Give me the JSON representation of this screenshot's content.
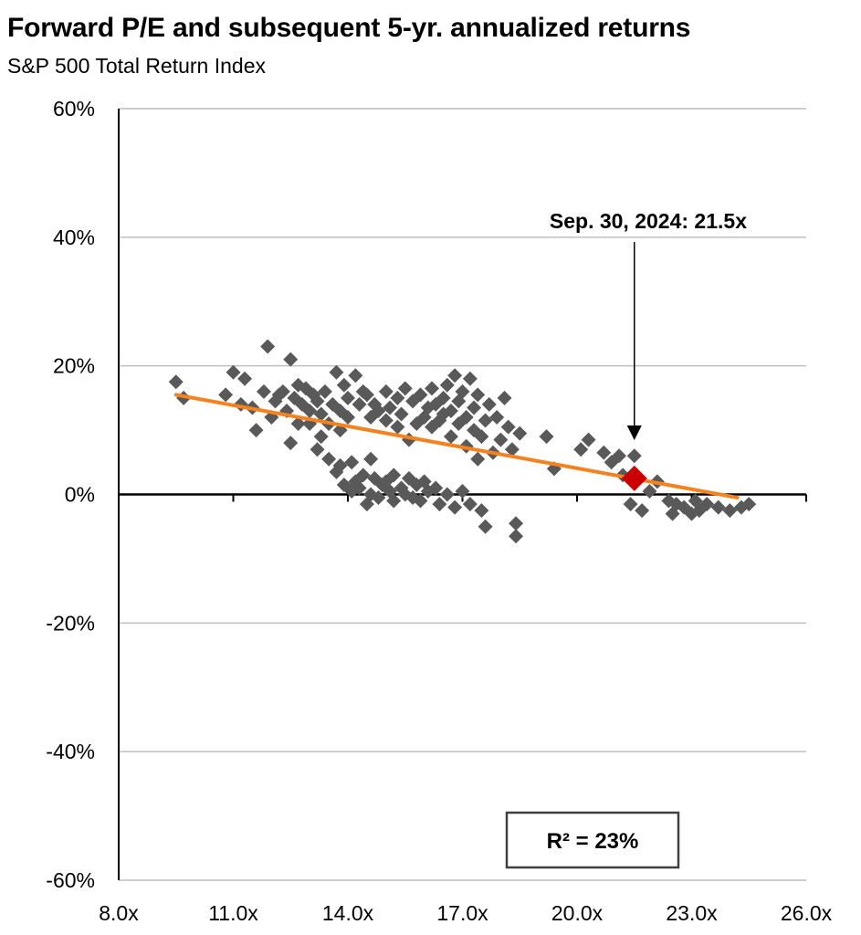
{
  "chart_data": {
    "type": "scatter",
    "title": "Forward P/E and subsequent 5-yr. annualized returns",
    "subtitle": "S&P 500 Total Return Index",
    "xlabel": "",
    "ylabel": "",
    "xlim": [
      8,
      26
    ],
    "ylim": [
      -60,
      60
    ],
    "x_ticks": [
      8,
      11,
      14,
      17,
      20,
      23,
      26
    ],
    "x_tick_labels": [
      "8.0x",
      "11.0x",
      "14.0x",
      "17.0x",
      "20.0x",
      "23.0x",
      "26.0x"
    ],
    "y_ticks": [
      60,
      40,
      20,
      0,
      -20,
      -40,
      -60
    ],
    "y_tick_labels": [
      "60%",
      "40%",
      "20%",
      "0%",
      "-20%",
      "-40%",
      "-60%"
    ],
    "grid": "horizontal",
    "colors": {
      "points": "#595959",
      "highlight": "#cc0000",
      "trendline": "#f5821f",
      "axis": "#000000",
      "grid": "#bfbfbf"
    },
    "series": [
      {
        "type": "scatter",
        "points": [
          [
            9.5,
            17.5
          ],
          [
            9.7,
            15.0
          ],
          [
            10.8,
            15.5
          ],
          [
            11.0,
            19.0
          ],
          [
            11.2,
            14.0
          ],
          [
            11.3,
            18.0
          ],
          [
            11.5,
            13.5
          ],
          [
            11.6,
            10.0
          ],
          [
            11.8,
            16.0
          ],
          [
            11.9,
            23.0
          ],
          [
            12.0,
            12.0
          ],
          [
            12.1,
            14.5
          ],
          [
            12.2,
            15.5
          ],
          [
            12.3,
            16.0
          ],
          [
            12.4,
            13.0
          ],
          [
            12.5,
            21.0
          ],
          [
            12.5,
            8.0
          ],
          [
            12.6,
            15.0
          ],
          [
            12.7,
            17.0
          ],
          [
            12.7,
            11.0
          ],
          [
            12.8,
            14.0
          ],
          [
            12.9,
            16.5
          ],
          [
            13.0,
            13.0
          ],
          [
            13.0,
            11.0
          ],
          [
            13.1,
            15.5
          ],
          [
            13.2,
            14.5
          ],
          [
            13.2,
            7.0
          ],
          [
            13.3,
            12.5
          ],
          [
            13.3,
            9.0
          ],
          [
            13.4,
            16.0
          ],
          [
            13.5,
            11.0
          ],
          [
            13.5,
            5.5
          ],
          [
            13.6,
            14.0
          ],
          [
            13.7,
            19.0
          ],
          [
            13.7,
            3.5
          ],
          [
            13.8,
            13.0
          ],
          [
            13.8,
            10.0
          ],
          [
            13.8,
            4.5
          ],
          [
            13.9,
            1.5
          ],
          [
            13.9,
            17.0
          ],
          [
            14.0,
            15.0
          ],
          [
            14.0,
            12.0
          ],
          [
            14.1,
            5.0
          ],
          [
            14.1,
            0.5
          ],
          [
            14.2,
            18.5
          ],
          [
            14.2,
            2.0
          ],
          [
            14.3,
            14.0
          ],
          [
            14.3,
            1.0
          ],
          [
            14.4,
            16.0
          ],
          [
            14.4,
            3.0
          ],
          [
            14.5,
            15.5
          ],
          [
            14.5,
            -1.5
          ],
          [
            14.6,
            12.0
          ],
          [
            14.6,
            5.5
          ],
          [
            14.6,
            0.0
          ],
          [
            14.7,
            2.5
          ],
          [
            14.7,
            14.0
          ],
          [
            14.8,
            13.0
          ],
          [
            14.8,
            -0.5
          ],
          [
            14.9,
            1.5
          ],
          [
            15.0,
            16.0
          ],
          [
            15.0,
            11.5
          ],
          [
            15.0,
            2.0
          ],
          [
            15.1,
            0.5
          ],
          [
            15.1,
            13.5
          ],
          [
            15.2,
            3.0
          ],
          [
            15.2,
            -1.0
          ],
          [
            15.3,
            10.5
          ],
          [
            15.3,
            15.0
          ],
          [
            15.4,
            1.0
          ],
          [
            15.4,
            12.5
          ],
          [
            15.5,
            0.0
          ],
          [
            15.5,
            16.5
          ],
          [
            15.6,
            8.5
          ],
          [
            15.6,
            2.5
          ],
          [
            15.7,
            14.5
          ],
          [
            15.7,
            -0.5
          ],
          [
            15.8,
            11.0
          ],
          [
            15.8,
            1.5
          ],
          [
            15.9,
            15.5
          ],
          [
            15.9,
            -1.0
          ],
          [
            16.0,
            12.0
          ],
          [
            16.0,
            2.0
          ],
          [
            16.1,
            13.5
          ],
          [
            16.1,
            0.5
          ],
          [
            16.2,
            16.5
          ],
          [
            16.2,
            10.5
          ],
          [
            16.3,
            1.0
          ],
          [
            16.3,
            14.0
          ],
          [
            16.4,
            11.5
          ],
          [
            16.4,
            -1.5
          ],
          [
            16.5,
            15.0
          ],
          [
            16.5,
            12.5
          ],
          [
            16.6,
            0.0
          ],
          [
            16.6,
            17.0
          ],
          [
            16.7,
            13.0
          ],
          [
            16.7,
            9.0
          ],
          [
            16.8,
            18.5
          ],
          [
            16.8,
            -2.0
          ],
          [
            16.9,
            14.5
          ],
          [
            16.9,
            11.0
          ],
          [
            17.0,
            16.0
          ],
          [
            17.0,
            0.5
          ],
          [
            17.1,
            12.0
          ],
          [
            17.1,
            7.5
          ],
          [
            17.2,
            18.0
          ],
          [
            17.2,
            -1.5
          ],
          [
            17.3,
            13.5
          ],
          [
            17.3,
            10.0
          ],
          [
            17.4,
            15.5
          ],
          [
            17.4,
            5.5
          ],
          [
            17.5,
            9.0
          ],
          [
            17.5,
            -2.5
          ],
          [
            17.6,
            11.5
          ],
          [
            17.6,
            -5.0
          ],
          [
            17.7,
            14.0
          ],
          [
            17.8,
            6.5
          ],
          [
            17.9,
            12.0
          ],
          [
            18.0,
            8.5
          ],
          [
            18.1,
            15.0
          ],
          [
            18.2,
            10.5
          ],
          [
            18.3,
            7.0
          ],
          [
            18.4,
            -4.5
          ],
          [
            18.4,
            -6.5
          ],
          [
            18.5,
            9.5
          ],
          [
            19.2,
            9.0
          ],
          [
            19.4,
            4.0
          ],
          [
            20.1,
            7.0
          ],
          [
            20.3,
            8.5
          ],
          [
            20.7,
            6.5
          ],
          [
            20.9,
            5.0
          ],
          [
            21.1,
            6.0
          ],
          [
            21.2,
            3.0
          ],
          [
            21.4,
            -1.5
          ],
          [
            21.5,
            6.0
          ],
          [
            21.7,
            -2.5
          ],
          [
            21.9,
            0.5
          ],
          [
            22.1,
            2.0
          ],
          [
            22.4,
            -1.0
          ],
          [
            22.5,
            -3.0
          ],
          [
            22.6,
            -1.5
          ],
          [
            22.8,
            -2.0
          ],
          [
            23.0,
            -3.0
          ],
          [
            23.1,
            -1.0
          ],
          [
            23.2,
            -2.5
          ],
          [
            23.4,
            -1.5
          ],
          [
            23.7,
            -2.0
          ],
          [
            24.0,
            -2.5
          ],
          [
            24.3,
            -2.0
          ],
          [
            24.5,
            -1.5
          ]
        ]
      },
      {
        "type": "line",
        "points": [
          [
            9.5,
            15.5
          ],
          [
            24.2,
            -0.5
          ]
        ]
      }
    ],
    "highlight": {
      "x": 21.5,
      "y": 2.5,
      "label": "Sep. 30, 2024:  21.5x"
    },
    "r_squared_label": "R²  = 23%"
  }
}
